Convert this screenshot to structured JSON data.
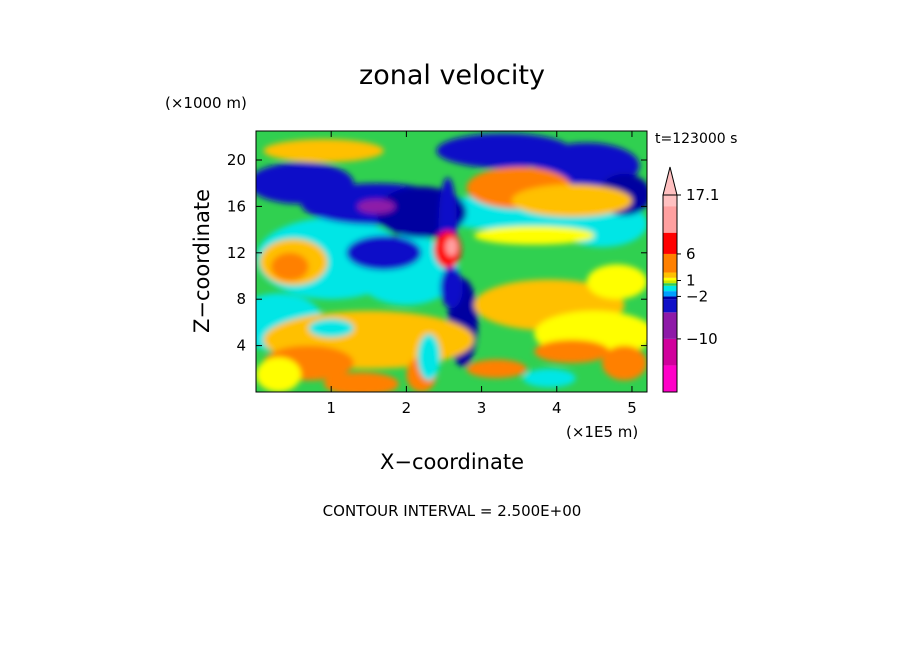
{
  "chart_data": {
    "type": "heatmap",
    "title": "zonal velocity",
    "ylabel": "Z−coordinate",
    "xlabel": "X−coordinate",
    "y_unit": "(×1000 m)",
    "x_unit": "(×1E5 m)",
    "time_label": "t=123000 s",
    "contour_interval": "CONTOUR INTERVAL = 2.500E+00",
    "xlim": [
      0,
      5.2
    ],
    "ylim": [
      0,
      22.5
    ],
    "x_ticks": [
      "1",
      "2",
      "3",
      "4",
      "5"
    ],
    "x_tick_values": [
      1,
      2,
      3,
      4,
      5
    ],
    "y_ticks": [
      "4",
      "8",
      "12",
      "16",
      "20"
    ],
    "y_tick_values": [
      4,
      8,
      12,
      16,
      20
    ],
    "colorbar": {
      "labels": [
        "17.1",
        "6",
        "1",
        "−2",
        "−10"
      ],
      "label_values": [
        17.1,
        6,
        1,
        -2,
        -10
      ],
      "levels": [
        -20,
        -15,
        -10,
        -5,
        -2.5,
        -2,
        -1,
        0,
        0.5,
        1,
        1.5,
        2.5,
        6,
        10,
        15,
        17.1
      ],
      "colors": [
        "#ff00c8",
        "#d0009c",
        "#8e1aa8",
        "#1010c8",
        "#0000a0",
        "#00a0ff",
        "#00e6e6",
        "#30d050",
        "#c8e600",
        "#ffff00",
        "#ffc000",
        "#ff8000",
        "#ff0000",
        "#ffa0a0",
        "#ffc0c0"
      ]
    },
    "palette": {
      "magenta": "#ff00c8",
      "purple": "#8e1aa8",
      "navy": "#0000a0",
      "blue": "#1010c8",
      "cyan": "#00e6e6",
      "green": "#30d050",
      "yellow": "#ffff00",
      "gold": "#ffc000",
      "orange": "#ff8000",
      "red": "#ff0000",
      "pink": "#ffa0a0"
    }
  }
}
